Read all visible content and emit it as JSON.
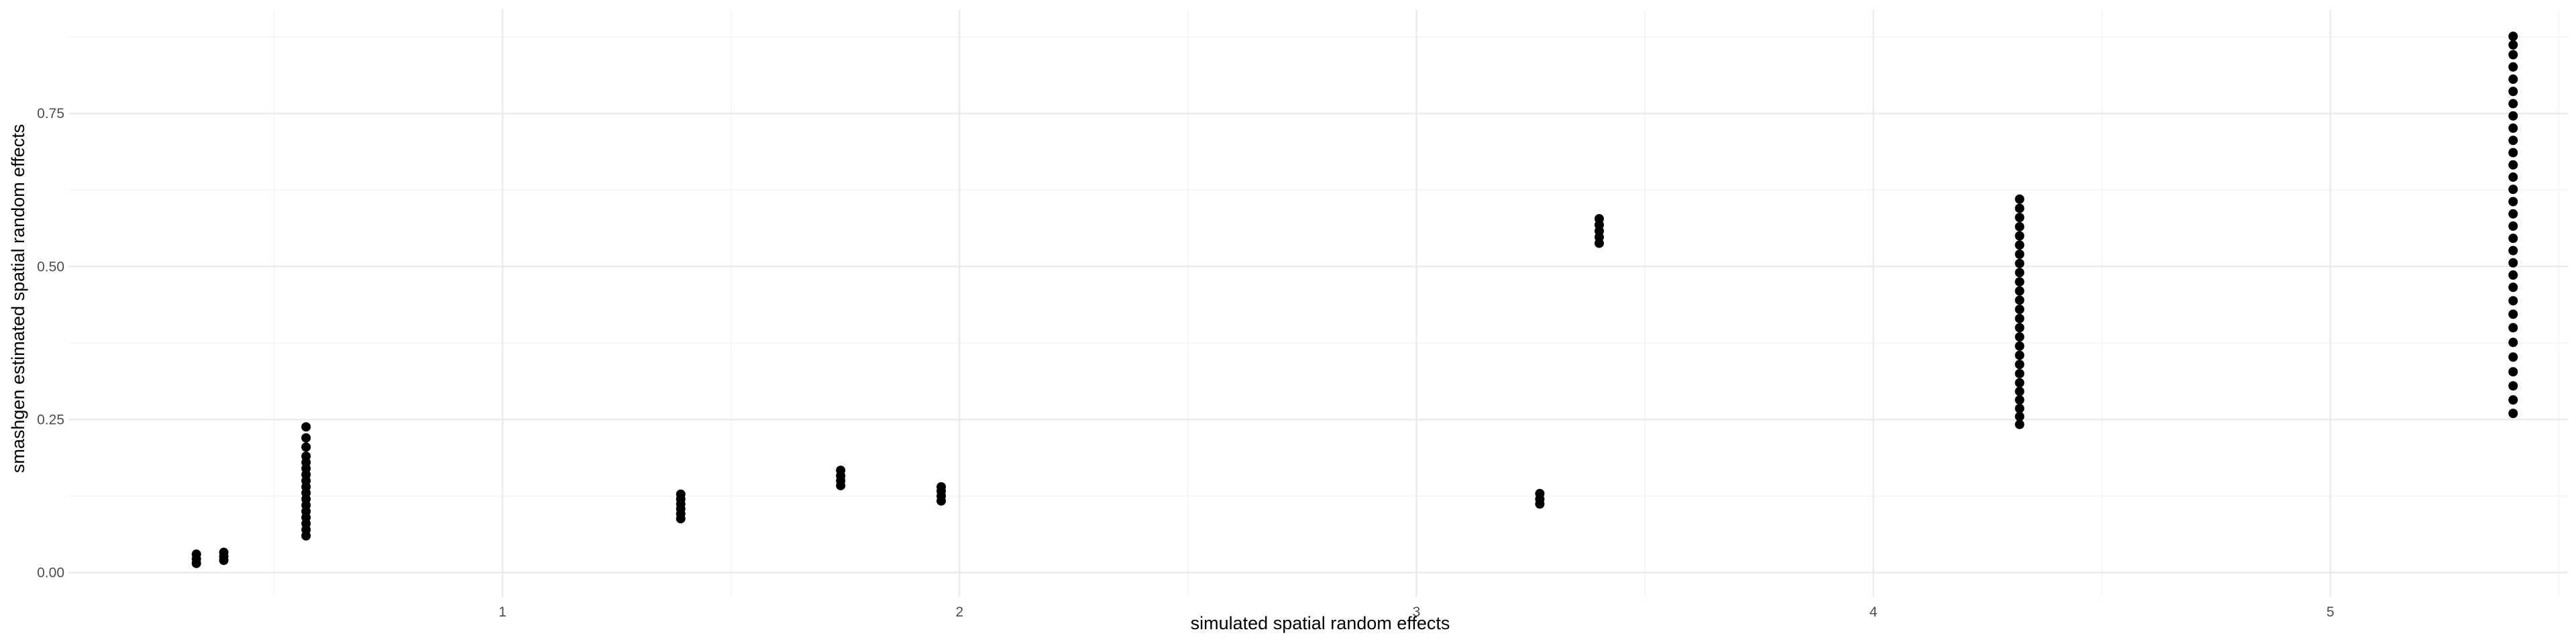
{
  "chart_data": {
    "type": "scatter",
    "title": "",
    "xlabel": "simulated spatial random effects",
    "ylabel": "smashgen estimated spatial random effects",
    "xlim": [
      0.05,
      5.52
    ],
    "ylim": [
      -0.04,
      0.92
    ],
    "x_ticks": [
      1,
      2,
      3,
      4,
      5
    ],
    "x_tick_labels": [
      "1",
      "2",
      "3",
      "4",
      "5"
    ],
    "y_ticks": [
      0.0,
      0.25,
      0.5,
      0.75
    ],
    "y_tick_labels": [
      "0.00",
      "0.25",
      "0.50",
      "0.75"
    ],
    "grid": true,
    "point_color": "#000000",
    "series": [
      {
        "points": [
          {
            "x": 0.33,
            "y": 0.015
          },
          {
            "x": 0.33,
            "y": 0.022
          },
          {
            "x": 0.33,
            "y": 0.03
          },
          {
            "x": 0.39,
            "y": 0.02
          },
          {
            "x": 0.39,
            "y": 0.026
          },
          {
            "x": 0.39,
            "y": 0.033
          },
          {
            "x": 0.57,
            "y": 0.06
          },
          {
            "x": 0.57,
            "y": 0.07
          },
          {
            "x": 0.57,
            "y": 0.08
          },
          {
            "x": 0.57,
            "y": 0.09
          },
          {
            "x": 0.57,
            "y": 0.1
          },
          {
            "x": 0.57,
            "y": 0.11
          },
          {
            "x": 0.57,
            "y": 0.12
          },
          {
            "x": 0.57,
            "y": 0.13
          },
          {
            "x": 0.57,
            "y": 0.14
          },
          {
            "x": 0.57,
            "y": 0.15
          },
          {
            "x": 0.57,
            "y": 0.16
          },
          {
            "x": 0.57,
            "y": 0.17
          },
          {
            "x": 0.57,
            "y": 0.18
          },
          {
            "x": 0.57,
            "y": 0.19
          },
          {
            "x": 0.57,
            "y": 0.205
          },
          {
            "x": 0.57,
            "y": 0.22
          },
          {
            "x": 0.57,
            "y": 0.238
          },
          {
            "x": 1.39,
            "y": 0.088
          },
          {
            "x": 1.39,
            "y": 0.096
          },
          {
            "x": 1.39,
            "y": 0.104
          },
          {
            "x": 1.39,
            "y": 0.112
          },
          {
            "x": 1.39,
            "y": 0.12
          },
          {
            "x": 1.39,
            "y": 0.128
          },
          {
            "x": 1.74,
            "y": 0.142
          },
          {
            "x": 1.74,
            "y": 0.15
          },
          {
            "x": 1.74,
            "y": 0.158
          },
          {
            "x": 1.74,
            "y": 0.167
          },
          {
            "x": 1.96,
            "y": 0.117
          },
          {
            "x": 1.96,
            "y": 0.125
          },
          {
            "x": 1.96,
            "y": 0.133
          },
          {
            "x": 1.96,
            "y": 0.14
          },
          {
            "x": 3.27,
            "y": 0.112
          },
          {
            "x": 3.27,
            "y": 0.12
          },
          {
            "x": 3.27,
            "y": 0.129
          },
          {
            "x": 3.4,
            "y": 0.538
          },
          {
            "x": 3.4,
            "y": 0.548
          },
          {
            "x": 3.4,
            "y": 0.558
          },
          {
            "x": 3.4,
            "y": 0.568
          },
          {
            "x": 3.4,
            "y": 0.578
          },
          {
            "x": 4.32,
            "y": 0.242
          },
          {
            "x": 4.32,
            "y": 0.255
          },
          {
            "x": 4.32,
            "y": 0.268
          },
          {
            "x": 4.32,
            "y": 0.282
          },
          {
            "x": 4.32,
            "y": 0.296
          },
          {
            "x": 4.32,
            "y": 0.31
          },
          {
            "x": 4.32,
            "y": 0.325
          },
          {
            "x": 4.32,
            "y": 0.34
          },
          {
            "x": 4.32,
            "y": 0.355
          },
          {
            "x": 4.32,
            "y": 0.37
          },
          {
            "x": 4.32,
            "y": 0.385
          },
          {
            "x": 4.32,
            "y": 0.4
          },
          {
            "x": 4.32,
            "y": 0.415
          },
          {
            "x": 4.32,
            "y": 0.43
          },
          {
            "x": 4.32,
            "y": 0.445
          },
          {
            "x": 4.32,
            "y": 0.46
          },
          {
            "x": 4.32,
            "y": 0.475
          },
          {
            "x": 4.32,
            "y": 0.49
          },
          {
            "x": 4.32,
            "y": 0.505
          },
          {
            "x": 4.32,
            "y": 0.52
          },
          {
            "x": 4.32,
            "y": 0.535
          },
          {
            "x": 4.32,
            "y": 0.55
          },
          {
            "x": 4.32,
            "y": 0.565
          },
          {
            "x": 4.32,
            "y": 0.58
          },
          {
            "x": 4.32,
            "y": 0.595
          },
          {
            "x": 4.32,
            "y": 0.61
          },
          {
            "x": 5.4,
            "y": 0.26
          },
          {
            "x": 5.4,
            "y": 0.282
          },
          {
            "x": 5.4,
            "y": 0.305
          },
          {
            "x": 5.4,
            "y": 0.328
          },
          {
            "x": 5.4,
            "y": 0.352
          },
          {
            "x": 5.4,
            "y": 0.376
          },
          {
            "x": 5.4,
            "y": 0.4
          },
          {
            "x": 5.4,
            "y": 0.422
          },
          {
            "x": 5.4,
            "y": 0.444
          },
          {
            "x": 5.4,
            "y": 0.466
          },
          {
            "x": 5.4,
            "y": 0.486
          },
          {
            "x": 5.4,
            "y": 0.506
          },
          {
            "x": 5.4,
            "y": 0.526
          },
          {
            "x": 5.4,
            "y": 0.546
          },
          {
            "x": 5.4,
            "y": 0.566
          },
          {
            "x": 5.4,
            "y": 0.586
          },
          {
            "x": 5.4,
            "y": 0.606
          },
          {
            "x": 5.4,
            "y": 0.626
          },
          {
            "x": 5.4,
            "y": 0.646
          },
          {
            "x": 5.4,
            "y": 0.666
          },
          {
            "x": 5.4,
            "y": 0.686
          },
          {
            "x": 5.4,
            "y": 0.706
          },
          {
            "x": 5.4,
            "y": 0.726
          },
          {
            "x": 5.4,
            "y": 0.746
          },
          {
            "x": 5.4,
            "y": 0.766
          },
          {
            "x": 5.4,
            "y": 0.786
          },
          {
            "x": 5.4,
            "y": 0.806
          },
          {
            "x": 5.4,
            "y": 0.826
          },
          {
            "x": 5.4,
            "y": 0.846
          },
          {
            "x": 5.4,
            "y": 0.862
          },
          {
            "x": 5.4,
            "y": 0.876
          }
        ]
      }
    ]
  }
}
